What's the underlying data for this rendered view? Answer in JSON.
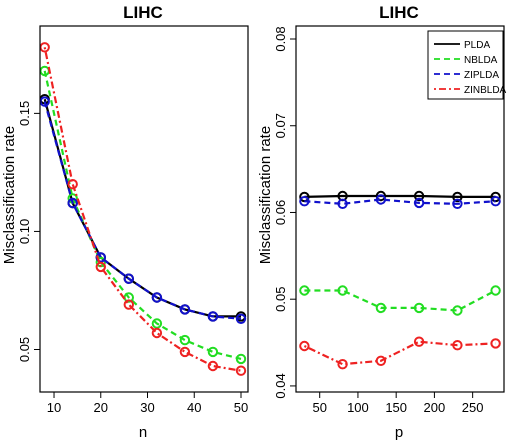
{
  "chart_data": [
    {
      "type": "line",
      "title": "LIHC",
      "xlabel": "n",
      "ylabel": "Misclassification rate",
      "xlim": [
        7,
        51.5
      ],
      "ylim": [
        0.032,
        0.187
      ],
      "xticks": [
        10,
        20,
        30,
        40,
        50
      ],
      "yticks": [
        0.05,
        0.1,
        0.15
      ],
      "ytick_labels": [
        "0.05",
        "0.10",
        "0.15"
      ],
      "x": [
        8,
        14,
        20,
        26,
        32,
        38,
        44,
        50
      ],
      "series": [
        {
          "name": "PLDA",
          "color": "#000000",
          "dash": "solid",
          "values": [
            0.156,
            0.112,
            0.089,
            0.08,
            0.072,
            0.067,
            0.064,
            0.064
          ]
        },
        {
          "name": "NBLDA",
          "color": "#22dd22",
          "dash": "dashed",
          "values": [
            0.168,
            0.114,
            0.087,
            0.072,
            0.061,
            0.054,
            0.049,
            0.046
          ]
        },
        {
          "name": "ZIPLDA",
          "color": "#1111cc",
          "dash": "dashed",
          "values": [
            0.155,
            0.112,
            0.089,
            0.08,
            0.072,
            0.067,
            0.064,
            0.063
          ]
        },
        {
          "name": "ZINBLDA",
          "color": "#ee2222",
          "dash": "dotdash",
          "values": [
            0.178,
            0.12,
            0.085,
            0.069,
            0.057,
            0.049,
            0.043,
            0.041
          ]
        }
      ],
      "legend": "none"
    },
    {
      "type": "line",
      "title": "LIHC",
      "xlabel": "p",
      "ylabel": "Misclassification rate",
      "xlim": [
        19,
        291
      ],
      "ylim": [
        0.0393,
        0.0815
      ],
      "xticks": [
        50,
        100,
        150,
        200,
        250
      ],
      "yticks": [
        0.04,
        0.05,
        0.06,
        0.07,
        0.08
      ],
      "ytick_labels": [
        "0.04",
        "0.05",
        "0.06",
        "0.07",
        "0.08"
      ],
      "x": [
        30,
        80,
        130,
        180,
        230,
        280
      ],
      "series": [
        {
          "name": "PLDA",
          "color": "#000000",
          "dash": "solid",
          "values": [
            0.0618,
            0.0619,
            0.0619,
            0.0619,
            0.0618,
            0.0618
          ]
        },
        {
          "name": "NBLDA",
          "color": "#22dd22",
          "dash": "dashed",
          "values": [
            0.051,
            0.051,
            0.049,
            0.049,
            0.0487,
            0.051
          ]
        },
        {
          "name": "ZIPLDA",
          "color": "#1111cc",
          "dash": "dashed",
          "values": [
            0.0613,
            0.061,
            0.0615,
            0.0611,
            0.061,
            0.0613
          ]
        },
        {
          "name": "ZINBLDA",
          "color": "#ee2222",
          "dash": "dotdash",
          "values": [
            0.0446,
            0.0425,
            0.0429,
            0.0451,
            0.0447,
            0.0449
          ]
        }
      ],
      "legend": "top-right",
      "legend_entries": [
        "PLDA",
        "NBLDA",
        "ZIPLDA",
        "ZINBLDA"
      ]
    }
  ]
}
